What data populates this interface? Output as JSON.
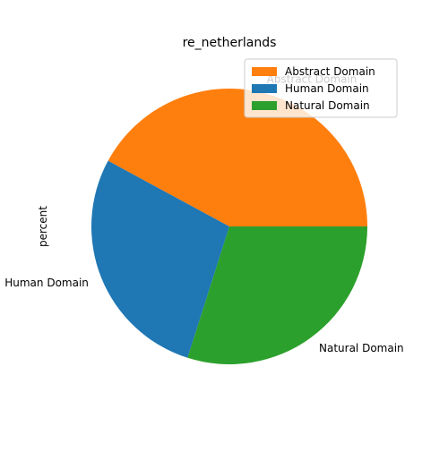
{
  "chart_data": {
    "type": "pie",
    "title": "re_netherlands",
    "ylabel": "percent",
    "slices": [
      {
        "label": "Abstract Domain",
        "value": 42.1,
        "color": "#ff7f0e"
      },
      {
        "label": "Human Domain",
        "value": 28.0,
        "color": "#1f77b4"
      },
      {
        "label": "Natural Domain",
        "value": 29.9,
        "color": "#2ca02c"
      }
    ],
    "start_angle_deg": 0,
    "direction": "counterclockwise",
    "legend": {
      "placement": "top-right",
      "entries": [
        "Abstract Domain",
        "Human Domain",
        "Natural Domain"
      ]
    }
  }
}
